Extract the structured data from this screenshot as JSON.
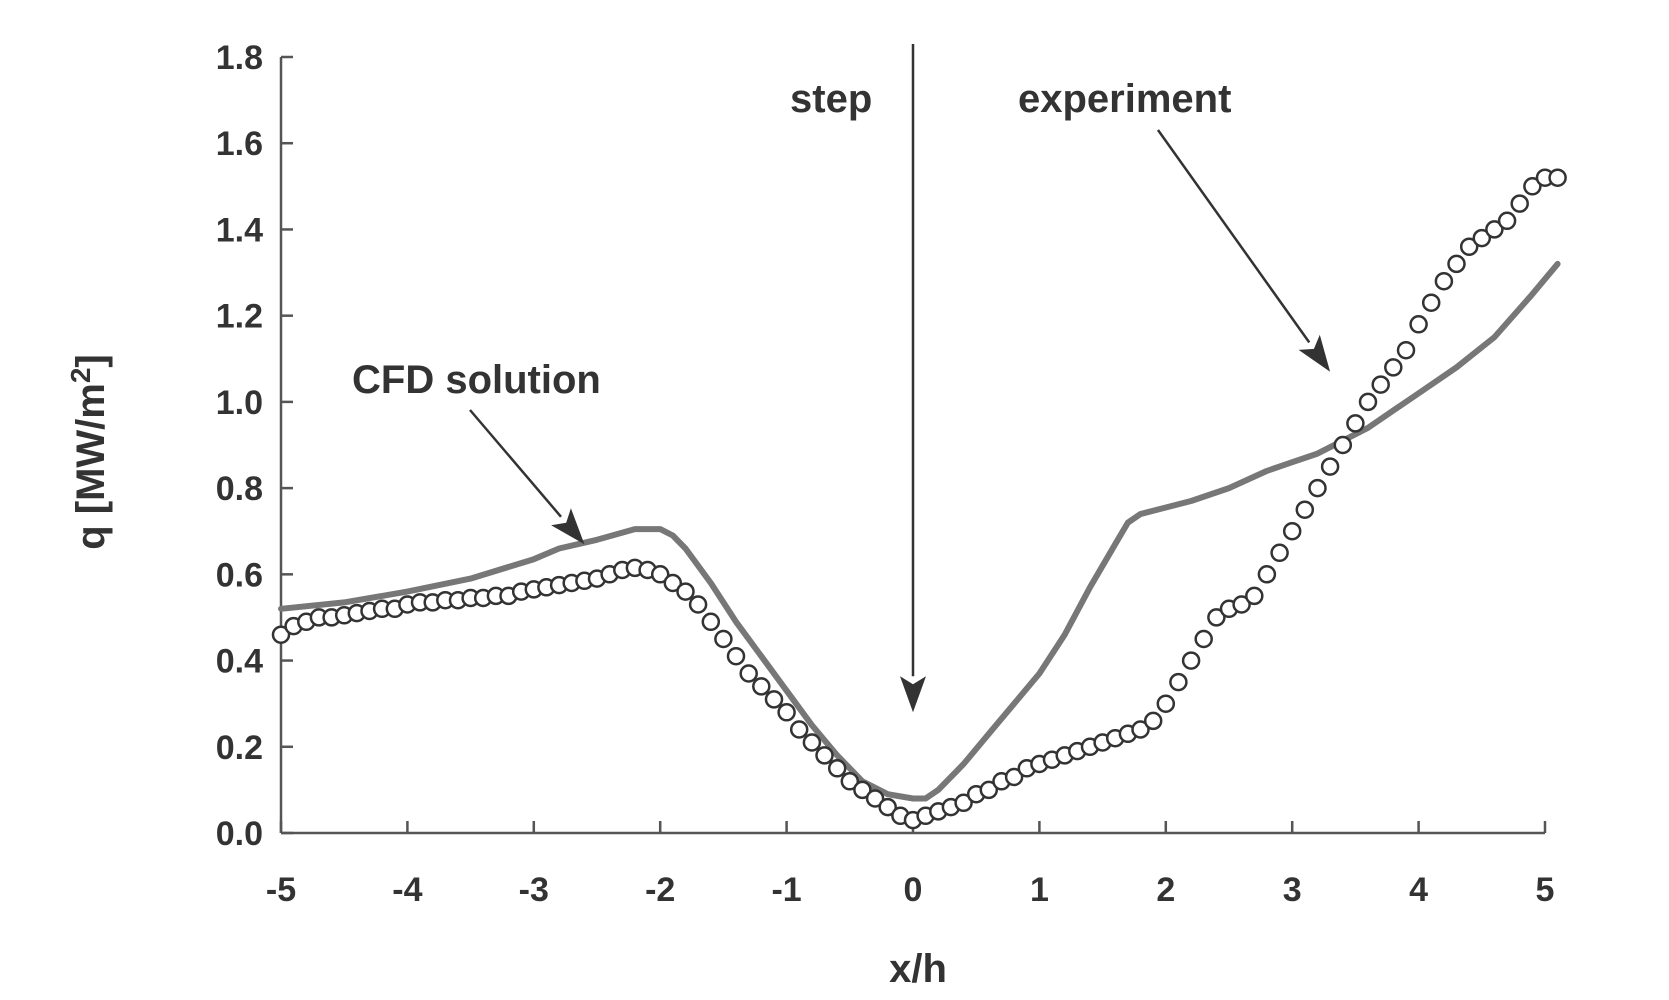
{
  "chart_data": {
    "type": "line",
    "xlabel": "x/h",
    "ylabel": "q [MW/m²]",
    "ylabel_main": "q [MW/m",
    "ylabel_sup": "2",
    "ylabel_end": "]",
    "xlim": [
      -5,
      5
    ],
    "ylim": [
      0,
      1.8
    ],
    "xticks": [
      -5,
      -4,
      -3,
      -2,
      -1,
      0,
      1,
      2,
      3,
      4,
      5
    ],
    "xtick_labels": [
      "-5",
      "-4",
      "-3",
      "-2",
      "-1",
      "0",
      "1",
      "2",
      "3",
      "4",
      "5"
    ],
    "yticks": [
      0,
      0.2,
      0.4,
      0.6,
      0.8,
      1.0,
      1.2,
      1.4,
      1.6,
      1.8
    ],
    "ytick_labels": [
      "0.0",
      "0.2",
      "0.4",
      "0.6",
      "0.8",
      "1.0",
      "1.2",
      "1.4",
      "1.6",
      "1.8"
    ],
    "grid": false,
    "legend": "none",
    "series": [
      {
        "style": "line",
        "color": "#777777",
        "x": [
          -5.0,
          -4.5,
          -4.0,
          -3.5,
          -3.0,
          -2.8,
          -2.5,
          -2.2,
          -2.0,
          -1.9,
          -1.8,
          -1.6,
          -1.4,
          -1.2,
          -1.0,
          -0.8,
          -0.6,
          -0.4,
          -0.2,
          0.0,
          0.1,
          0.2,
          0.4,
          0.6,
          0.8,
          1.0,
          1.2,
          1.4,
          1.6,
          1.7,
          1.8,
          2.0,
          2.2,
          2.5,
          2.8,
          3.0,
          3.2,
          3.4,
          3.6,
          3.8,
          4.0,
          4.3,
          4.6,
          4.9,
          5.1
        ],
        "y": [
          0.52,
          0.535,
          0.56,
          0.59,
          0.635,
          0.66,
          0.68,
          0.705,
          0.705,
          0.69,
          0.66,
          0.58,
          0.49,
          0.41,
          0.33,
          0.25,
          0.18,
          0.12,
          0.09,
          0.08,
          0.08,
          0.1,
          0.16,
          0.23,
          0.3,
          0.37,
          0.46,
          0.57,
          0.67,
          0.72,
          0.74,
          0.755,
          0.77,
          0.8,
          0.84,
          0.86,
          0.88,
          0.91,
          0.94,
          0.98,
          1.02,
          1.08,
          1.15,
          1.25,
          1.32
        ]
      },
      {
        "style": "circles",
        "color": "#333333",
        "x": [
          -5.0,
          -4.9,
          -4.8,
          -4.7,
          -4.6,
          -4.5,
          -4.4,
          -4.3,
          -4.2,
          -4.1,
          -4.0,
          -3.9,
          -3.8,
          -3.7,
          -3.6,
          -3.5,
          -3.4,
          -3.3,
          -3.2,
          -3.1,
          -3.0,
          -2.9,
          -2.8,
          -2.7,
          -2.6,
          -2.5,
          -2.4,
          -2.3,
          -2.2,
          -2.1,
          -2.0,
          -1.9,
          -1.8,
          -1.7,
          -1.6,
          -1.5,
          -1.4,
          -1.3,
          -1.2,
          -1.1,
          -1.0,
          -0.9,
          -0.8,
          -0.7,
          -0.6,
          -0.5,
          -0.4,
          -0.3,
          -0.2,
          -0.1,
          0.0,
          0.1,
          0.2,
          0.3,
          0.4,
          0.5,
          0.6,
          0.7,
          0.8,
          0.9,
          1.0,
          1.1,
          1.2,
          1.3,
          1.4,
          1.5,
          1.6,
          1.7,
          1.8,
          1.9,
          2.0,
          2.1,
          2.2,
          2.3,
          2.4,
          2.5,
          2.6,
          2.7,
          2.8,
          2.9,
          3.0,
          3.1,
          3.2,
          3.3,
          3.4,
          3.5,
          3.6,
          3.7,
          3.8,
          3.9,
          4.0,
          4.1,
          4.2,
          4.3,
          4.4,
          4.5,
          4.6,
          4.7,
          4.8,
          4.9,
          5.0,
          5.1
        ],
        "y": [
          0.46,
          0.48,
          0.49,
          0.5,
          0.5,
          0.505,
          0.51,
          0.515,
          0.52,
          0.52,
          0.53,
          0.535,
          0.535,
          0.54,
          0.54,
          0.545,
          0.545,
          0.55,
          0.55,
          0.56,
          0.565,
          0.57,
          0.575,
          0.58,
          0.585,
          0.59,
          0.6,
          0.61,
          0.615,
          0.61,
          0.6,
          0.58,
          0.56,
          0.53,
          0.49,
          0.45,
          0.41,
          0.37,
          0.34,
          0.31,
          0.28,
          0.24,
          0.21,
          0.18,
          0.15,
          0.12,
          0.1,
          0.08,
          0.06,
          0.04,
          0.03,
          0.04,
          0.05,
          0.06,
          0.07,
          0.09,
          0.1,
          0.12,
          0.13,
          0.15,
          0.16,
          0.17,
          0.18,
          0.19,
          0.2,
          0.21,
          0.22,
          0.23,
          0.24,
          0.26,
          0.3,
          0.35,
          0.4,
          0.45,
          0.5,
          0.52,
          0.53,
          0.55,
          0.6,
          0.65,
          0.7,
          0.75,
          0.8,
          0.85,
          0.9,
          0.95,
          1.0,
          1.04,
          1.08,
          1.12,
          1.18,
          1.23,
          1.28,
          1.32,
          1.36,
          1.38,
          1.4,
          1.42,
          1.46,
          1.5,
          1.52,
          1.52
        ]
      }
    ],
    "annotations": {
      "cfd": {
        "text": "CFD solution",
        "arrow_to": [
          -2.6,
          0.67
        ]
      },
      "step": {
        "text": "step",
        "arrow_to": [
          0.0,
          0.28
        ]
      },
      "experiment": {
        "text": "experiment",
        "arrow_to": [
          3.3,
          1.07
        ]
      }
    }
  }
}
